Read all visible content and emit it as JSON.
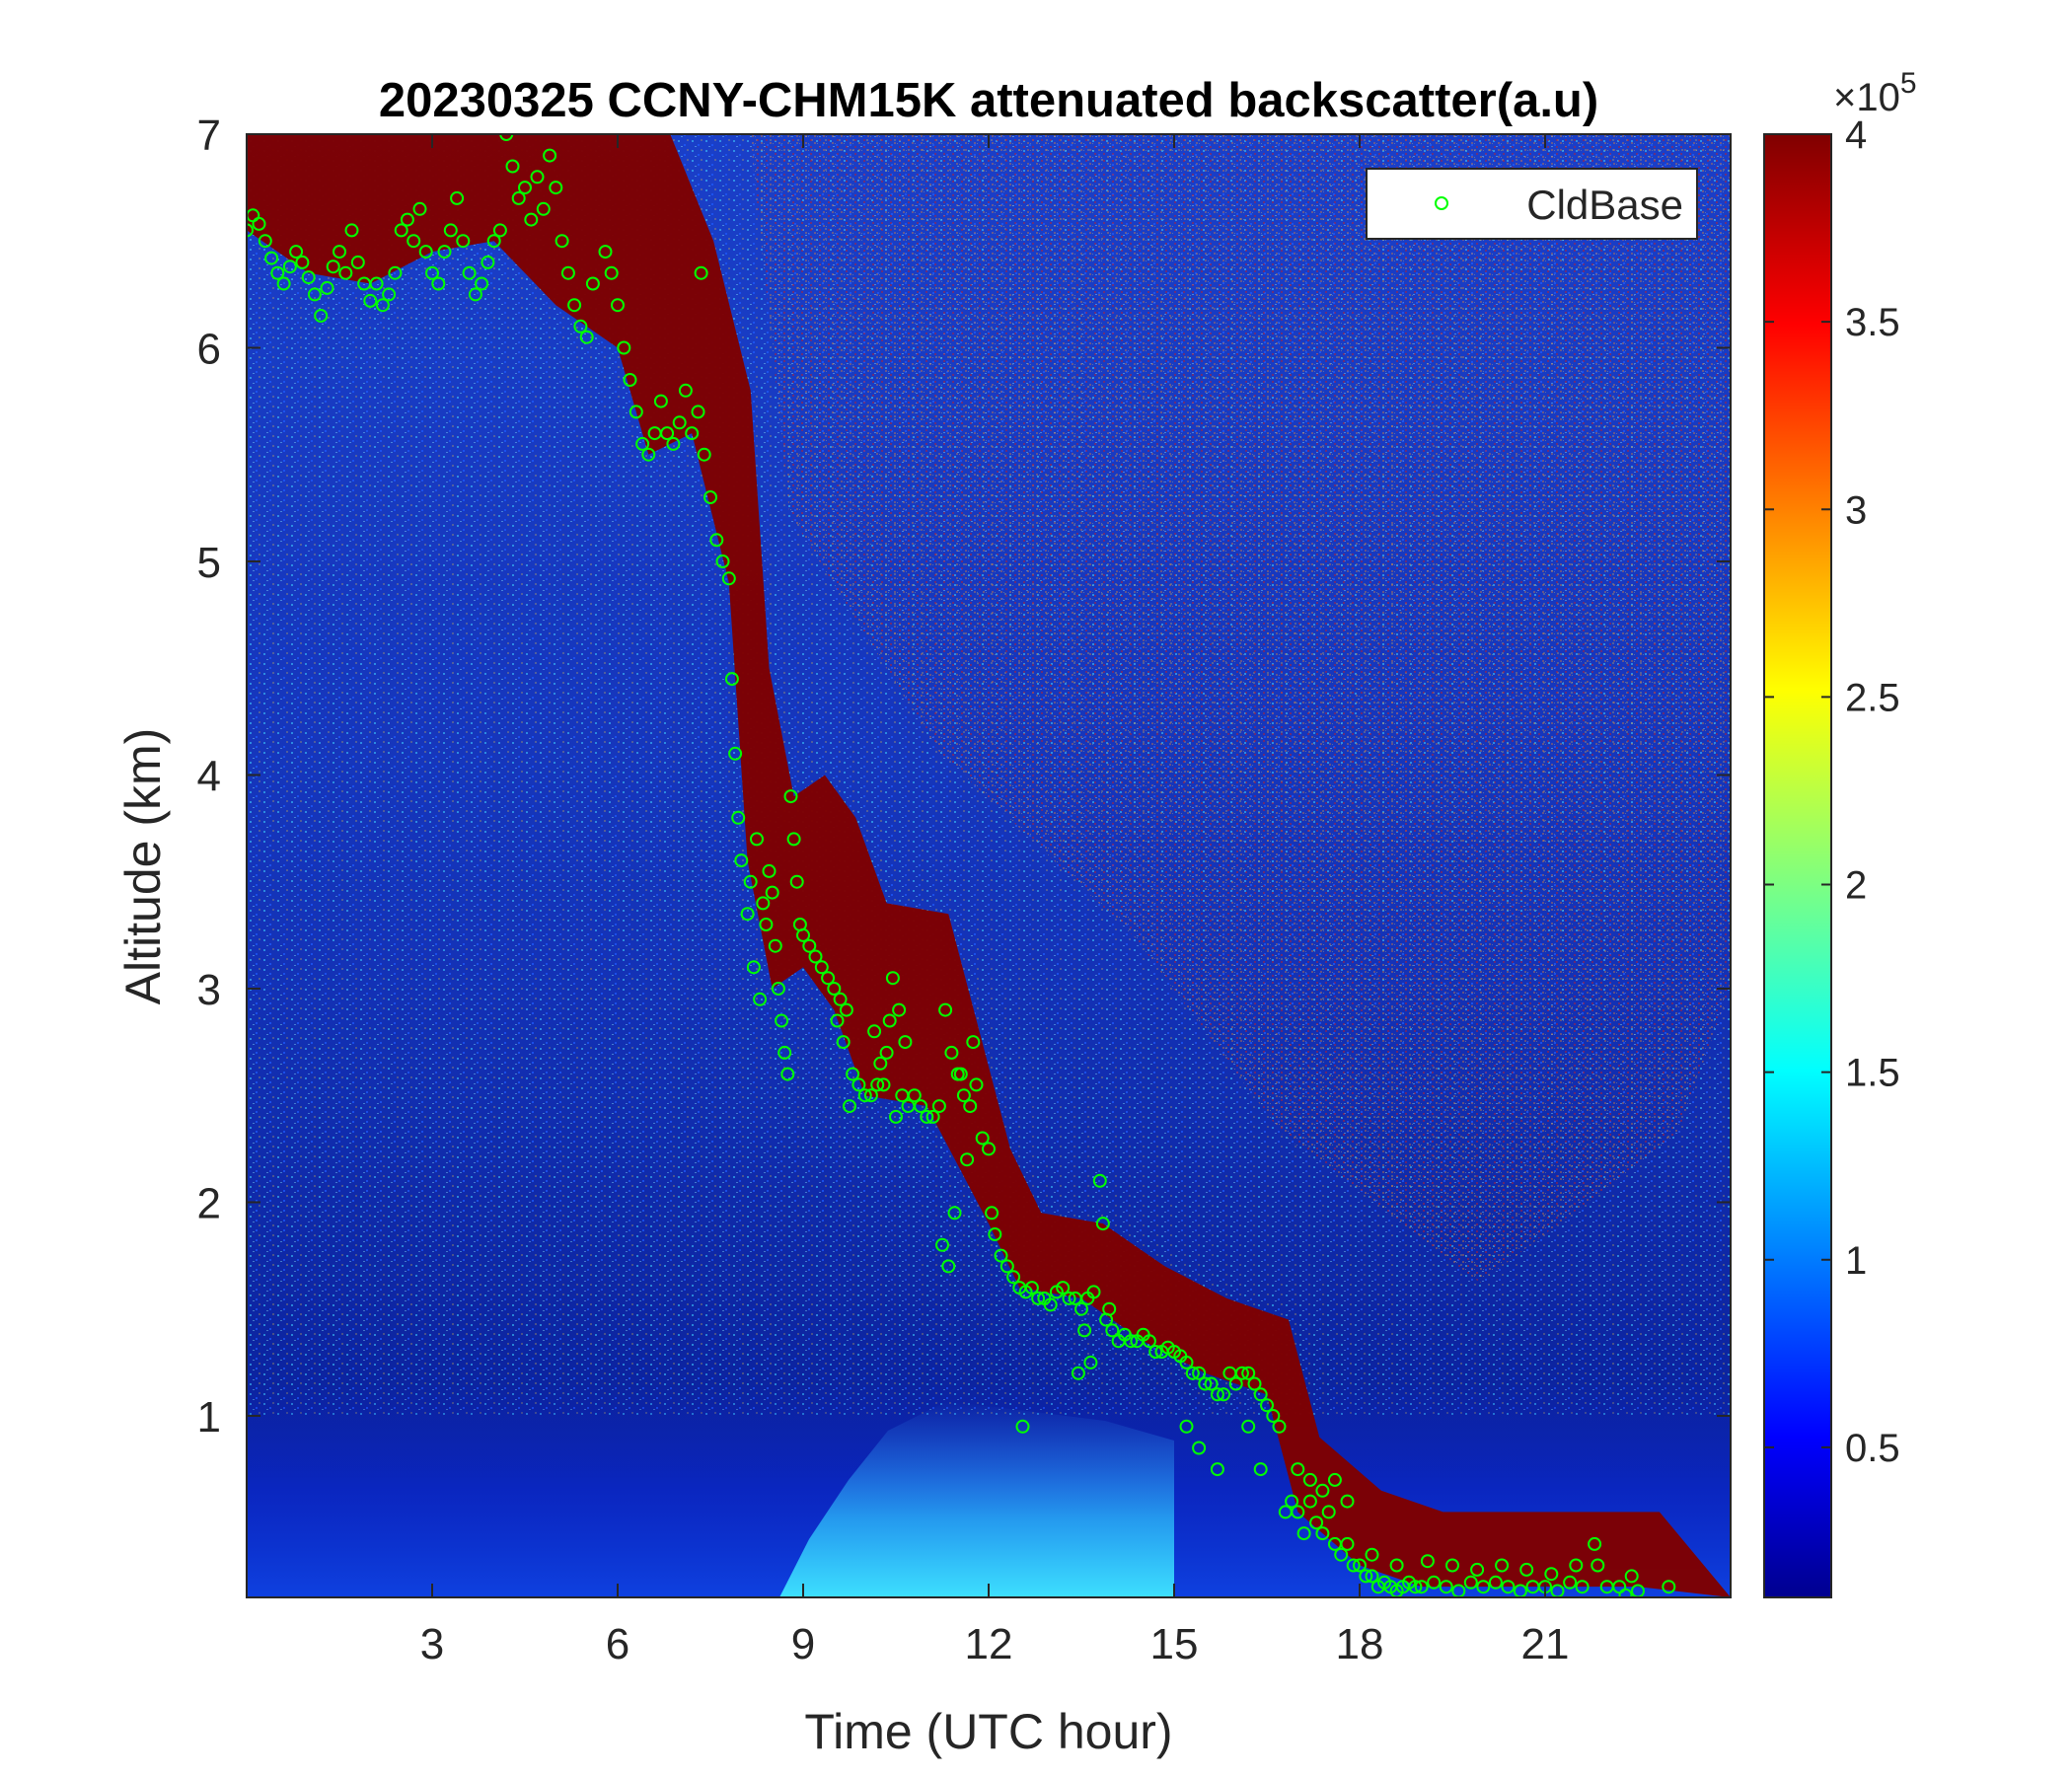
{
  "chart_data": {
    "type": "heatmap",
    "title": "20230325 CCNY-CHM15K attenuated backscatter(a.u)",
    "xlabel": "Time (UTC hour)",
    "ylabel": "Altitude (km)",
    "xlim": [
      0,
      24
    ],
    "ylim": [
      0.15,
      7
    ],
    "xticks": [
      3,
      6,
      9,
      12,
      15,
      18,
      21
    ],
    "yticks": [
      1,
      2,
      3,
      4,
      5,
      6,
      7
    ],
    "colorbar": {
      "colormap": "jet",
      "range": [
        0.1,
        4
      ],
      "ticks": [
        0.5,
        1,
        1.5,
        2,
        2.5,
        3,
        3.5,
        4
      ],
      "exponent_label": "×10",
      "exponent_power": "5"
    },
    "legend": {
      "position": "top-right",
      "entries": [
        {
          "name": "CldBase",
          "marker": "circle",
          "color": "#00ff00"
        }
      ]
    },
    "cloud_layer_descent": [
      {
        "x": 0.0,
        "base": 6.55
      },
      {
        "x": 1.0,
        "base": 6.35
      },
      {
        "x": 2.0,
        "base": 6.3
      },
      {
        "x": 3.0,
        "base": 6.45
      },
      {
        "x": 4.0,
        "base": 6.5
      },
      {
        "x": 5.0,
        "base": 6.2
      },
      {
        "x": 6.0,
        "base": 6.0
      },
      {
        "x": 6.5,
        "base": 5.5
      },
      {
        "x": 7.2,
        "base": 5.6
      },
      {
        "x": 7.8,
        "base": 4.9
      },
      {
        "x": 8.1,
        "base": 3.6
      },
      {
        "x": 8.5,
        "base": 3.0
      },
      {
        "x": 9.0,
        "base": 3.1
      },
      {
        "x": 9.5,
        "base": 2.9
      },
      {
        "x": 10.0,
        "base": 2.5
      },
      {
        "x": 11.0,
        "base": 2.45
      },
      {
        "x": 12.0,
        "base": 1.9
      },
      {
        "x": 12.5,
        "base": 1.6
      },
      {
        "x": 13.5,
        "base": 1.55
      },
      {
        "x": 14.5,
        "base": 1.35
      },
      {
        "x": 15.5,
        "base": 1.2
      },
      {
        "x": 16.5,
        "base": 1.1
      },
      {
        "x": 17.0,
        "base": 0.55
      },
      {
        "x": 18.0,
        "base": 0.3
      },
      {
        "x": 19.0,
        "base": 0.2
      },
      {
        "x": 21.0,
        "base": 0.2
      },
      {
        "x": 22.5,
        "base": 0.2
      }
    ],
    "series": [
      {
        "name": "CldBase",
        "points": [
          [
            0.0,
            6.55
          ],
          [
            0.1,
            6.62
          ],
          [
            0.2,
            6.58
          ],
          [
            0.3,
            6.5
          ],
          [
            0.4,
            6.42
          ],
          [
            0.5,
            6.35
          ],
          [
            0.6,
            6.3
          ],
          [
            0.7,
            6.38
          ],
          [
            0.8,
            6.45
          ],
          [
            0.9,
            6.4
          ],
          [
            1.0,
            6.33
          ],
          [
            1.1,
            6.25
          ],
          [
            1.2,
            6.15
          ],
          [
            1.3,
            6.28
          ],
          [
            1.4,
            6.38
          ],
          [
            1.5,
            6.45
          ],
          [
            1.6,
            6.35
          ],
          [
            1.7,
            6.55
          ],
          [
            1.8,
            6.4
          ],
          [
            1.9,
            6.3
          ],
          [
            2.0,
            6.22
          ],
          [
            2.1,
            6.3
          ],
          [
            2.2,
            6.2
          ],
          [
            2.3,
            6.25
          ],
          [
            2.4,
            6.35
          ],
          [
            2.5,
            6.55
          ],
          [
            2.6,
            6.6
          ],
          [
            2.7,
            6.5
          ],
          [
            2.8,
            6.65
          ],
          [
            2.9,
            6.45
          ],
          [
            3.0,
            6.35
          ],
          [
            3.1,
            6.3
          ],
          [
            3.2,
            6.45
          ],
          [
            3.3,
            6.55
          ],
          [
            3.4,
            6.7
          ],
          [
            3.5,
            6.5
          ],
          [
            3.6,
            6.35
          ],
          [
            3.7,
            6.25
          ],
          [
            3.8,
            6.3
          ],
          [
            3.9,
            6.4
          ],
          [
            4.0,
            6.5
          ],
          [
            4.1,
            6.55
          ],
          [
            4.2,
            7.0
          ],
          [
            4.3,
            6.85
          ],
          [
            4.4,
            6.7
          ],
          [
            4.5,
            6.75
          ],
          [
            4.6,
            6.6
          ],
          [
            4.7,
            6.8
          ],
          [
            4.8,
            6.65
          ],
          [
            4.9,
            6.9
          ],
          [
            5.0,
            6.75
          ],
          [
            5.1,
            6.5
          ],
          [
            5.2,
            6.35
          ],
          [
            5.3,
            6.2
          ],
          [
            5.4,
            6.1
          ],
          [
            5.5,
            6.05
          ],
          [
            5.6,
            6.3
          ],
          [
            5.8,
            6.45
          ],
          [
            5.9,
            6.35
          ],
          [
            6.0,
            6.2
          ],
          [
            6.1,
            6.0
          ],
          [
            6.2,
            5.85
          ],
          [
            6.3,
            5.7
          ],
          [
            6.4,
            5.55
          ],
          [
            6.5,
            5.5
          ],
          [
            6.6,
            5.6
          ],
          [
            6.7,
            5.75
          ],
          [
            6.8,
            5.6
          ],
          [
            6.9,
            5.55
          ],
          [
            7.0,
            5.65
          ],
          [
            7.1,
            5.8
          ],
          [
            7.2,
            5.6
          ],
          [
            7.3,
            5.7
          ],
          [
            7.35,
            6.35
          ],
          [
            7.4,
            5.5
          ],
          [
            7.5,
            5.3
          ],
          [
            7.6,
            5.1
          ],
          [
            7.7,
            5.0
          ],
          [
            7.8,
            4.92
          ],
          [
            7.85,
            4.45
          ],
          [
            7.9,
            4.1
          ],
          [
            7.95,
            3.8
          ],
          [
            8.0,
            3.6
          ],
          [
            8.1,
            3.35
          ],
          [
            8.2,
            3.1
          ],
          [
            8.3,
            2.95
          ],
          [
            8.4,
            3.3
          ],
          [
            8.5,
            3.45
          ],
          [
            8.6,
            3.0
          ],
          [
            8.7,
            2.7
          ],
          [
            8.8,
            3.9
          ],
          [
            8.9,
            3.5
          ],
          [
            9.0,
            3.25
          ],
          [
            9.1,
            3.2
          ],
          [
            9.2,
            3.15
          ],
          [
            9.3,
            3.1
          ],
          [
            9.4,
            3.05
          ],
          [
            9.5,
            3.0
          ],
          [
            9.6,
            2.95
          ],
          [
            9.7,
            2.9
          ],
          [
            9.75,
            2.45
          ],
          [
            9.8,
            2.6
          ],
          [
            9.9,
            2.55
          ],
          [
            10.0,
            2.5
          ],
          [
            10.1,
            2.5
          ],
          [
            10.2,
            2.55
          ],
          [
            10.3,
            2.55
          ],
          [
            10.4,
            2.85
          ],
          [
            10.5,
            2.4
          ],
          [
            10.6,
            2.5
          ],
          [
            10.7,
            2.45
          ],
          [
            10.8,
            2.5
          ],
          [
            10.9,
            2.45
          ],
          [
            11.0,
            2.4
          ],
          [
            11.1,
            2.4
          ],
          [
            11.2,
            2.45
          ],
          [
            11.3,
            2.9
          ],
          [
            11.4,
            2.7
          ],
          [
            11.5,
            2.6
          ],
          [
            11.6,
            2.5
          ],
          [
            11.7,
            2.45
          ],
          [
            11.8,
            2.55
          ],
          [
            11.9,
            2.3
          ],
          [
            12.0,
            2.25
          ],
          [
            12.05,
            1.95
          ],
          [
            12.1,
            1.85
          ],
          [
            12.2,
            1.75
          ],
          [
            12.3,
            1.7
          ],
          [
            12.4,
            1.65
          ],
          [
            12.5,
            1.6
          ],
          [
            12.6,
            1.58
          ],
          [
            12.7,
            1.6
          ],
          [
            12.8,
            1.55
          ],
          [
            12.9,
            1.55
          ],
          [
            13.0,
            1.52
          ],
          [
            13.1,
            1.58
          ],
          [
            13.2,
            1.6
          ],
          [
            13.3,
            1.55
          ],
          [
            13.4,
            1.55
          ],
          [
            13.5,
            1.5
          ],
          [
            13.6,
            1.55
          ],
          [
            13.7,
            1.58
          ],
          [
            13.8,
            2.1
          ],
          [
            13.85,
            1.9
          ],
          [
            13.9,
            1.45
          ],
          [
            14.0,
            1.4
          ],
          [
            14.1,
            1.35
          ],
          [
            14.2,
            1.38
          ],
          [
            14.3,
            1.35
          ],
          [
            14.4,
            1.35
          ],
          [
            14.5,
            1.38
          ],
          [
            14.6,
            1.35
          ],
          [
            14.7,
            1.3
          ],
          [
            14.8,
            1.3
          ],
          [
            14.9,
            1.32
          ],
          [
            15.0,
            1.3
          ],
          [
            15.1,
            1.28
          ],
          [
            15.2,
            1.25
          ],
          [
            15.3,
            1.2
          ],
          [
            15.4,
            1.2
          ],
          [
            15.5,
            1.15
          ],
          [
            15.6,
            1.15
          ],
          [
            15.7,
            1.1
          ],
          [
            15.8,
            1.1
          ],
          [
            15.9,
            1.2
          ],
          [
            16.0,
            1.15
          ],
          [
            16.1,
            1.2
          ],
          [
            16.2,
            1.2
          ],
          [
            16.3,
            1.15
          ],
          [
            16.4,
            1.1
          ],
          [
            16.5,
            1.05
          ],
          [
            16.6,
            1.0
          ],
          [
            16.7,
            0.95
          ],
          [
            16.8,
            0.55
          ],
          [
            16.9,
            0.6
          ],
          [
            17.0,
            0.55
          ],
          [
            17.1,
            0.45
          ],
          [
            17.2,
            0.6
          ],
          [
            17.3,
            0.5
          ],
          [
            17.4,
            0.45
          ],
          [
            17.5,
            0.55
          ],
          [
            17.6,
            0.4
          ],
          [
            17.7,
            0.35
          ],
          [
            17.8,
            0.4
          ],
          [
            17.9,
            0.3
          ],
          [
            18.0,
            0.3
          ],
          [
            18.1,
            0.25
          ],
          [
            18.2,
            0.25
          ],
          [
            18.3,
            0.2
          ],
          [
            18.4,
            0.22
          ],
          [
            18.5,
            0.2
          ],
          [
            18.6,
            0.18
          ],
          [
            18.7,
            0.2
          ],
          [
            18.8,
            0.22
          ],
          [
            18.9,
            0.2
          ],
          [
            19.0,
            0.2
          ],
          [
            19.2,
            0.22
          ],
          [
            19.4,
            0.2
          ],
          [
            19.6,
            0.18
          ],
          [
            19.8,
            0.22
          ],
          [
            20.0,
            0.2
          ],
          [
            20.2,
            0.22
          ],
          [
            20.4,
            0.2
          ],
          [
            20.6,
            0.18
          ],
          [
            20.8,
            0.2
          ],
          [
            21.0,
            0.2
          ],
          [
            21.2,
            0.18
          ],
          [
            21.4,
            0.22
          ],
          [
            21.6,
            0.2
          ],
          [
            21.8,
            0.4
          ],
          [
            22.0,
            0.2
          ],
          [
            22.2,
            0.2
          ],
          [
            22.4,
            0.25
          ],
          [
            22.5,
            0.18
          ],
          [
            23.0,
            0.2
          ],
          [
            8.15,
            3.5
          ],
          [
            8.25,
            3.7
          ],
          [
            8.35,
            3.4
          ],
          [
            8.45,
            3.55
          ],
          [
            8.55,
            3.2
          ],
          [
            8.65,
            2.85
          ],
          [
            8.75,
            2.6
          ],
          [
            8.85,
            3.7
          ],
          [
            8.95,
            3.3
          ],
          [
            9.55,
            2.85
          ],
          [
            9.65,
            2.75
          ],
          [
            10.15,
            2.8
          ],
          [
            10.25,
            2.65
          ],
          [
            10.35,
            2.7
          ],
          [
            10.45,
            3.05
          ],
          [
            10.55,
            2.9
          ],
          [
            10.65,
            2.75
          ],
          [
            11.25,
            1.8
          ],
          [
            11.35,
            1.7
          ],
          [
            11.45,
            1.95
          ],
          [
            11.55,
            2.6
          ],
          [
            11.65,
            2.2
          ],
          [
            11.75,
            2.75
          ],
          [
            12.55,
            0.95
          ],
          [
            13.45,
            1.2
          ],
          [
            13.55,
            1.4
          ],
          [
            13.65,
            1.25
          ],
          [
            13.95,
            1.5
          ],
          [
            15.2,
            0.95
          ],
          [
            15.4,
            0.85
          ],
          [
            15.7,
            0.75
          ],
          [
            16.2,
            0.95
          ],
          [
            16.4,
            0.75
          ],
          [
            17.0,
            0.75
          ],
          [
            17.2,
            0.7
          ],
          [
            17.4,
            0.65
          ],
          [
            17.6,
            0.7
          ],
          [
            17.8,
            0.6
          ],
          [
            18.2,
            0.35
          ],
          [
            18.6,
            0.3
          ],
          [
            19.1,
            0.32
          ],
          [
            19.5,
            0.3
          ],
          [
            19.9,
            0.28
          ],
          [
            20.3,
            0.3
          ],
          [
            20.7,
            0.28
          ],
          [
            21.1,
            0.26
          ],
          [
            21.5,
            0.3
          ],
          [
            21.85,
            0.3
          ],
          [
            22.3,
            0.16
          ]
        ]
      }
    ]
  }
}
